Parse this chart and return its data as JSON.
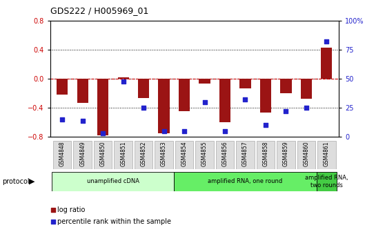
{
  "title": "GDS222 / H005969_01",
  "samples": [
    "GSM4848",
    "GSM4849",
    "GSM4850",
    "GSM4851",
    "GSM4852",
    "GSM4853",
    "GSM4854",
    "GSM4855",
    "GSM4856",
    "GSM4857",
    "GSM4858",
    "GSM4859",
    "GSM4860",
    "GSM4861"
  ],
  "log_ratio": [
    -0.22,
    -0.33,
    -0.78,
    0.02,
    -0.26,
    -0.75,
    -0.45,
    -0.06,
    -0.6,
    -0.13,
    -0.46,
    -0.2,
    -0.27,
    0.43
  ],
  "percentile": [
    15,
    14,
    3,
    48,
    25,
    5,
    5,
    30,
    5,
    32,
    10,
    22,
    25,
    82
  ],
  "ylim_left": [
    -0.8,
    0.8
  ],
  "ylim_right": [
    0,
    100
  ],
  "yticks_left": [
    -0.8,
    -0.4,
    0.0,
    0.4,
    0.8
  ],
  "yticks_right": [
    0,
    25,
    50,
    75,
    100
  ],
  "ytick_labels_right": [
    "0",
    "25",
    "50",
    "75",
    "100%"
  ],
  "bar_color": "#9B1414",
  "dot_color": "#2222CC",
  "zero_line_color": "#CC0000",
  "protocol_groups": [
    {
      "label": "unamplified cDNA",
      "start": 0,
      "end": 5,
      "color": "#CCFFCC"
    },
    {
      "label": "amplified RNA, one round",
      "start": 6,
      "end": 12,
      "color": "#66EE66"
    },
    {
      "label": "amplified RNA,\ntwo rounds",
      "start": 13,
      "end": 13,
      "color": "#44CC44"
    }
  ],
  "legend_items": [
    {
      "label": "log ratio",
      "color": "#9B1414"
    },
    {
      "label": "percentile rank within the sample",
      "color": "#2222CC"
    }
  ],
  "protocol_label": "protocol",
  "background_color": "#FFFFFF",
  "bar_width": 0.55,
  "label_box_color": "#DDDDDD"
}
